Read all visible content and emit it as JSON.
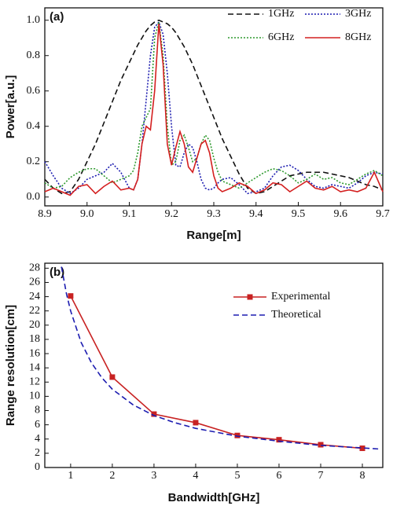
{
  "chart_data": [
    {
      "type": "line",
      "annotation": "(a)",
      "x_label": "Range[m]",
      "y_label": "Power[a.u.]",
      "x": [
        8.9,
        8.92,
        8.94,
        8.96,
        8.98,
        9.0,
        9.02,
        9.04,
        9.06,
        9.08,
        9.1,
        9.11,
        9.12,
        9.13,
        9.14,
        9.15,
        9.16,
        9.17,
        9.18,
        9.19,
        9.2,
        9.21,
        9.22,
        9.23,
        9.24,
        9.25,
        9.26,
        9.27,
        9.28,
        9.29,
        9.3,
        9.31,
        9.32,
        9.34,
        9.36,
        9.38,
        9.4,
        9.42,
        9.44,
        9.46,
        9.48,
        9.5,
        9.52,
        9.54,
        9.56,
        9.58,
        9.6,
        9.62,
        9.64,
        9.66,
        9.68,
        9.7
      ],
      "series": [
        {
          "name": "1GHz",
          "color": "#111111",
          "style": "dashed",
          "values": [
            0.1,
            0.05,
            0.02,
            0.03,
            0.1,
            0.2,
            0.3,
            0.42,
            0.54,
            0.66,
            0.76,
            0.81,
            0.86,
            0.9,
            0.94,
            0.97,
            0.99,
            1.0,
            0.99,
            0.98,
            0.96,
            0.93,
            0.89,
            0.85,
            0.8,
            0.75,
            0.69,
            0.63,
            0.57,
            0.51,
            0.45,
            0.39,
            0.33,
            0.23,
            0.13,
            0.05,
            0.02,
            0.03,
            0.06,
            0.09,
            0.12,
            0.13,
            0.14,
            0.14,
            0.14,
            0.13,
            0.12,
            0.11,
            0.09,
            0.07,
            0.06,
            0.04
          ]
        },
        {
          "name": "3GHz",
          "color": "#1c1cb0",
          "style": "dotted",
          "values": [
            0.2,
            0.12,
            0.05,
            0.02,
            0.05,
            0.1,
            0.12,
            0.14,
            0.19,
            0.14,
            0.05,
            0.04,
            0.1,
            0.3,
            0.55,
            0.8,
            0.96,
            0.99,
            0.92,
            0.7,
            0.4,
            0.18,
            0.17,
            0.25,
            0.3,
            0.28,
            0.2,
            0.1,
            0.05,
            0.04,
            0.05,
            0.08,
            0.1,
            0.11,
            0.07,
            0.02,
            0.03,
            0.05,
            0.12,
            0.17,
            0.18,
            0.15,
            0.1,
            0.06,
            0.05,
            0.07,
            0.06,
            0.05,
            0.08,
            0.12,
            0.14,
            0.13
          ]
        },
        {
          "name": "6GHz",
          "color": "#2f9a2f",
          "style": "dotted",
          "values": [
            0.08,
            0.05,
            0.06,
            0.11,
            0.14,
            0.16,
            0.16,
            0.12,
            0.08,
            0.1,
            0.12,
            0.15,
            0.25,
            0.4,
            0.45,
            0.5,
            0.9,
            0.99,
            0.8,
            0.4,
            0.18,
            0.2,
            0.32,
            0.35,
            0.28,
            0.2,
            0.22,
            0.3,
            0.35,
            0.32,
            0.22,
            0.14,
            0.09,
            0.07,
            0.05,
            0.08,
            0.11,
            0.14,
            0.16,
            0.15,
            0.12,
            0.08,
            0.1,
            0.13,
            0.1,
            0.11,
            0.08,
            0.07,
            0.1,
            0.13,
            0.15,
            0.12
          ]
        },
        {
          "name": "8GHz",
          "color": "#d42020",
          "style": "solid",
          "values": [
            0.03,
            0.05,
            0.03,
            0.01,
            0.06,
            0.07,
            0.02,
            0.06,
            0.09,
            0.04,
            0.05,
            0.04,
            0.1,
            0.3,
            0.4,
            0.38,
            0.6,
            0.98,
            0.75,
            0.3,
            0.18,
            0.28,
            0.37,
            0.3,
            0.17,
            0.14,
            0.22,
            0.3,
            0.32,
            0.25,
            0.12,
            0.05,
            0.03,
            0.05,
            0.08,
            0.06,
            0.02,
            0.04,
            0.08,
            0.07,
            0.03,
            0.06,
            0.09,
            0.05,
            0.04,
            0.06,
            0.03,
            0.04,
            0.03,
            0.05,
            0.14,
            0.03
          ]
        }
      ],
      "xlim": [
        8.9,
        9.7
      ],
      "ylim": [
        -0.05,
        1.07
      ],
      "xticks": [
        8.9,
        {
          "value": 9,
          "label": "9.0"
        },
        9.1,
        9.2,
        9.3,
        9.4,
        9.5,
        9.6,
        9.7
      ],
      "yticks": [
        {
          "value": 0,
          "label": "0.0"
        },
        0.2,
        0.4,
        0.6,
        0.8,
        {
          "value": 1,
          "label": "1.0"
        }
      ],
      "legend": "upper right"
    },
    {
      "type": "line",
      "annotation": "(b)",
      "x_label": "Bandwidth[GHz]",
      "y_label": "Range resolution[cm]",
      "series": [
        {
          "name": "Experimental",
          "color": "#c82222",
          "style": "solid",
          "marker": "square",
          "x": [
            1,
            2,
            3,
            4,
            5,
            6,
            7,
            8
          ],
          "values": [
            24.1,
            12.7,
            7.5,
            6.3,
            4.5,
            3.9,
            3.2,
            2.7
          ]
        },
        {
          "name": "Theoretical",
          "color": "#1c1cb0",
          "style": "dashed",
          "x": [
            0.78,
            0.9,
            1,
            1.25,
            1.5,
            1.75,
            2,
            2.5,
            3,
            3.5,
            4,
            5,
            6,
            7,
            8,
            8.4
          ],
          "values": [
            28.2,
            24.4,
            22.0,
            17.6,
            14.7,
            12.6,
            11.0,
            8.8,
            7.3,
            6.3,
            5.5,
            4.4,
            3.7,
            3.1,
            2.75,
            2.6
          ]
        }
      ],
      "xlim": [
        0.38,
        8.49
      ],
      "ylim": [
        0,
        28.7
      ],
      "xticks": [
        1,
        2,
        3,
        4,
        5,
        6,
        7,
        8
      ],
      "yticks": [
        0,
        2,
        4,
        6,
        8,
        10,
        12,
        14,
        16,
        18,
        20,
        22,
        24,
        26,
        28
      ],
      "legend": "upper center"
    }
  ]
}
